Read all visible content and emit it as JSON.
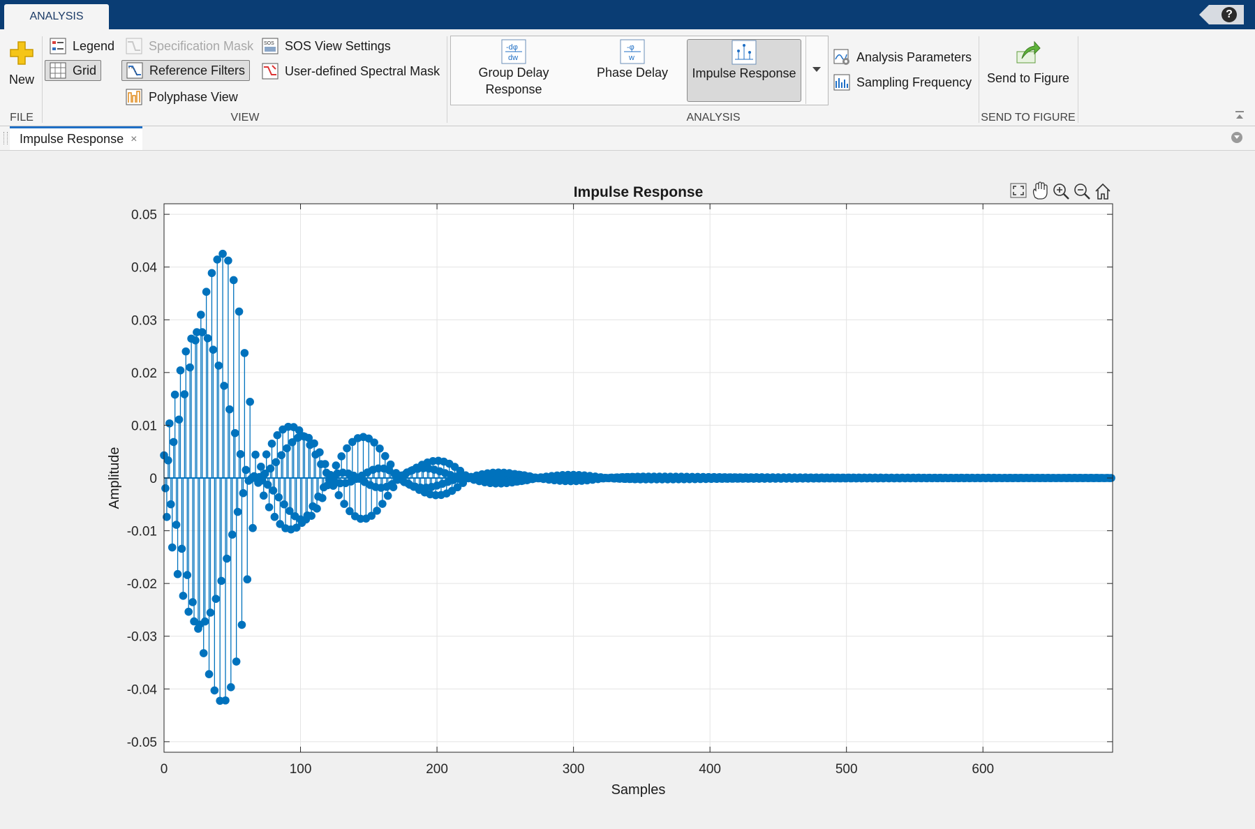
{
  "top": {
    "tab_label": "ANALYSIS",
    "help_label": "?"
  },
  "ribbon": {
    "file": {
      "new_label": "New",
      "section_label": "FILE"
    },
    "view": {
      "legend_label": "Legend",
      "grid_label": "Grid",
      "spec_mask_label": "Specification Mask",
      "reference_filters_label": "Reference Filters",
      "polyphase_label": "Polyphase View",
      "sos_label": "SOS View Settings",
      "user_mask_label": "User-defined Spectral Mask",
      "section_label": "VIEW"
    },
    "analysis": {
      "group_delay_label1": "Group Delay",
      "group_delay_label2": "Response",
      "phase_delay_label": "Phase Delay",
      "impulse_label": "Impulse Response",
      "params_label": "Analysis Parameters",
      "sampling_label": "Sampling Frequency",
      "section_label": "ANALYSIS"
    },
    "send": {
      "button_label": "Send to Figure",
      "section_label": "SEND TO FIGURE"
    }
  },
  "document": {
    "tab_label": "Impulse Response",
    "close_glyph": "×"
  },
  "colors": {
    "accent": "#0a3d74",
    "stem": "#0072bd",
    "tab_blue": "#1f6fc5"
  },
  "chart_data": {
    "type": "stem",
    "title": "Impulse Response",
    "xlabel": "Samples",
    "ylabel": "Amplitude",
    "xlim": [
      0,
      695
    ],
    "ylim": [
      -0.052,
      0.052
    ],
    "xticks": [
      0,
      100,
      200,
      300,
      400,
      500,
      600
    ],
    "yticks": [
      -0.05,
      -0.04,
      -0.03,
      -0.02,
      -0.01,
      0,
      0.01,
      0.02,
      0.03,
      0.04,
      0.05
    ],
    "ytick_labels": [
      "-0.05",
      "-0.04",
      "-0.03",
      "-0.02",
      "-0.01",
      "0",
      "0.01",
      "0.02",
      "0.03",
      "0.04",
      "0.05"
    ],
    "xtick_labels": [
      "0",
      "100",
      "200",
      "300",
      "400",
      "500",
      "600"
    ],
    "grid": true,
    "num_samples": 695,
    "series": [
      {
        "envelope_peaks": [
          {
            "n": 40,
            "value": 0.047
          },
          {
            "n": 97,
            "value": 0.012
          },
          {
            "n": 146,
            "value": 0.0078
          },
          {
            "n": 198,
            "value": 0.0036
          },
          {
            "n": 248,
            "value": 0.0012
          },
          {
            "n": 298,
            "value": 0.0006
          },
          {
            "n": 350,
            "value": 0.0003
          }
        ]
      }
    ]
  }
}
